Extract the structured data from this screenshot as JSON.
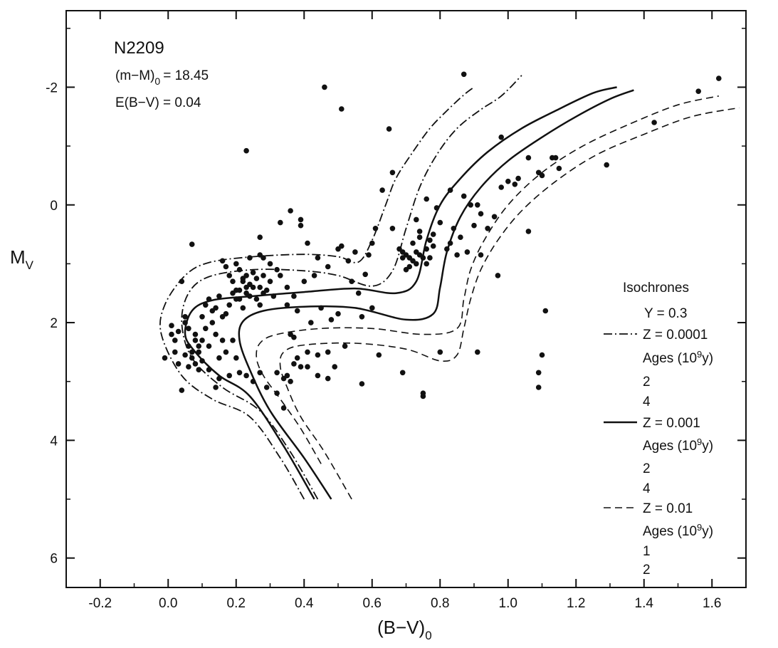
{
  "chart_data": {
    "type": "scatter",
    "title": "N2209",
    "annotations": {
      "modulus": "(m−M)0 = 18.45",
      "modulus_main": "(m−M)",
      "modulus_sub": "0",
      "modulus_value": "= 18.45",
      "reddening": "E(B−V) = 0.04"
    },
    "xlabel": "(B−V)0",
    "xlabel_main": "(B−V)",
    "xlabel_sub": "0",
    "ylabel": "MV",
    "ylabel_main": "M",
    "ylabel_sub": "V",
    "xlim": [
      -0.3,
      1.7
    ],
    "ylim": [
      6.5,
      -3.3
    ],
    "y_inverted": true,
    "grid": false,
    "legend_position": "right",
    "x_ticks": [
      {
        "value": -0.2,
        "label": "-0.2"
      },
      {
        "value": 0.0,
        "label": "0.0"
      },
      {
        "value": 0.2,
        "label": "0.2"
      },
      {
        "value": 0.4,
        "label": "0.4"
      },
      {
        "value": 0.6,
        "label": "0.6"
      },
      {
        "value": 0.8,
        "label": "0.8"
      },
      {
        "value": 1.0,
        "label": "1.0"
      },
      {
        "value": 1.2,
        "label": "1.2"
      },
      {
        "value": 1.4,
        "label": "1.4"
      },
      {
        "value": 1.6,
        "label": "1.6"
      }
    ],
    "y_ticks": [
      {
        "value": -2,
        "label": "-2"
      },
      {
        "value": 0,
        "label": "0"
      },
      {
        "value": 2,
        "label": "2"
      },
      {
        "value": 4,
        "label": "4"
      },
      {
        "value": 6,
        "label": "6"
      }
    ],
    "legend": {
      "title": "Isochrones",
      "helium": "Y = 0.3",
      "groups": [
        {
          "style": "dashdot",
          "label": "Z = 0.0001",
          "ages_main": "Ages (10",
          "ages_exp": "9",
          "ages_unit": "y)",
          "ages": [
            "2",
            "4"
          ]
        },
        {
          "style": "solid",
          "label": "Z = 0.001",
          "ages_main": "Ages (10",
          "ages_exp": "9",
          "ages_unit": "y)",
          "ages": [
            "2",
            "4"
          ]
        },
        {
          "style": "dashed",
          "label": "Z = 0.01",
          "ages_main": "Ages (10",
          "ages_exp": "9",
          "ages_unit": "y)",
          "ages": [
            "1",
            "2"
          ]
        }
      ]
    },
    "isochrones": [
      {
        "style": "dashdot",
        "points": [
          [
            0.4,
            5.0
          ],
          [
            0.33,
            4.3
          ],
          [
            0.24,
            3.6
          ],
          [
            0.13,
            3.3
          ],
          [
            0.04,
            2.9
          ],
          [
            -0.02,
            2.2
          ],
          [
            -0.01,
            1.7
          ],
          [
            0.05,
            1.2
          ],
          [
            0.12,
            0.98
          ],
          [
            0.25,
            0.88
          ],
          [
            0.4,
            0.84
          ],
          [
            0.5,
            0.88
          ],
          [
            0.56,
            0.97
          ],
          [
            0.6,
            0.6
          ],
          [
            0.64,
            0.0
          ],
          [
            0.67,
            -0.45
          ],
          [
            0.72,
            -0.9
          ],
          [
            0.77,
            -1.3
          ],
          [
            0.82,
            -1.6
          ],
          [
            0.87,
            -1.87
          ],
          [
            0.9,
            -2.0
          ]
        ]
      },
      {
        "style": "dashdot",
        "points": [
          [
            0.44,
            5.0
          ],
          [
            0.36,
            4.2
          ],
          [
            0.27,
            3.5
          ],
          [
            0.16,
            3.1
          ],
          [
            0.07,
            2.6
          ],
          [
            0.04,
            2.0
          ],
          [
            0.06,
            1.5
          ],
          [
            0.12,
            1.22
          ],
          [
            0.25,
            1.1
          ],
          [
            0.4,
            1.12
          ],
          [
            0.5,
            1.2
          ],
          [
            0.6,
            1.38
          ],
          [
            0.66,
            1.12
          ],
          [
            0.7,
            0.4
          ],
          [
            0.74,
            -0.3
          ],
          [
            0.79,
            -0.85
          ],
          [
            0.85,
            -1.3
          ],
          [
            0.92,
            -1.62
          ],
          [
            0.98,
            -1.85
          ],
          [
            1.04,
            -2.2
          ]
        ]
      },
      {
        "style": "solid",
        "points": [
          [
            0.43,
            5.0
          ],
          [
            0.34,
            4.1
          ],
          [
            0.24,
            3.25
          ],
          [
            0.15,
            2.9
          ],
          [
            0.08,
            2.5
          ],
          [
            0.05,
            2.2
          ],
          [
            0.07,
            1.8
          ],
          [
            0.13,
            1.62
          ],
          [
            0.25,
            1.55
          ],
          [
            0.4,
            1.48
          ],
          [
            0.55,
            1.42
          ],
          [
            0.67,
            1.5
          ],
          [
            0.73,
            1.3
          ],
          [
            0.76,
            0.6
          ],
          [
            0.8,
            0.0
          ],
          [
            0.86,
            -0.45
          ],
          [
            0.94,
            -0.9
          ],
          [
            1.04,
            -1.3
          ],
          [
            1.14,
            -1.6
          ],
          [
            1.25,
            -1.9
          ],
          [
            1.32,
            -2.0
          ]
        ]
      },
      {
        "style": "solid",
        "points": [
          [
            0.48,
            5.0
          ],
          [
            0.4,
            4.3
          ],
          [
            0.3,
            3.5
          ],
          [
            0.24,
            2.8
          ],
          [
            0.21,
            2.3
          ],
          [
            0.22,
            1.98
          ],
          [
            0.28,
            1.8
          ],
          [
            0.4,
            1.73
          ],
          [
            0.55,
            1.75
          ],
          [
            0.7,
            1.95
          ],
          [
            0.78,
            1.85
          ],
          [
            0.8,
            1.4
          ],
          [
            0.82,
            0.8
          ],
          [
            0.86,
            0.2
          ],
          [
            0.92,
            -0.3
          ],
          [
            1.0,
            -0.75
          ],
          [
            1.1,
            -1.15
          ],
          [
            1.2,
            -1.5
          ],
          [
            1.3,
            -1.8
          ],
          [
            1.37,
            -1.95
          ]
        ]
      },
      {
        "style": "dashed",
        "points": [
          [
            0.45,
            4.4
          ],
          [
            0.39,
            3.8
          ],
          [
            0.33,
            3.3
          ],
          [
            0.28,
            2.9
          ],
          [
            0.26,
            2.6
          ],
          [
            0.27,
            2.35
          ],
          [
            0.32,
            2.2
          ],
          [
            0.45,
            2.1
          ],
          [
            0.6,
            2.1
          ],
          [
            0.75,
            2.2
          ],
          [
            0.85,
            2.1
          ],
          [
            0.87,
            1.6
          ],
          [
            0.89,
            1.1
          ],
          [
            0.93,
            0.6
          ],
          [
            1.0,
            0.0
          ],
          [
            1.1,
            -0.55
          ],
          [
            1.22,
            -1.0
          ],
          [
            1.36,
            -1.38
          ],
          [
            1.5,
            -1.7
          ],
          [
            1.62,
            -1.85
          ]
        ]
      },
      {
        "style": "dashed",
        "points": [
          [
            0.54,
            5.0
          ],
          [
            0.46,
            4.2
          ],
          [
            0.39,
            3.6
          ],
          [
            0.35,
            3.1
          ],
          [
            0.33,
            2.75
          ],
          [
            0.34,
            2.5
          ],
          [
            0.4,
            2.38
          ],
          [
            0.55,
            2.35
          ],
          [
            0.7,
            2.45
          ],
          [
            0.8,
            2.65
          ],
          [
            0.85,
            2.55
          ],
          [
            0.87,
            2.1
          ],
          [
            0.89,
            1.6
          ],
          [
            0.92,
            1.1
          ],
          [
            0.97,
            0.6
          ],
          [
            1.04,
            0.1
          ],
          [
            1.14,
            -0.4
          ],
          [
            1.26,
            -0.85
          ],
          [
            1.4,
            -1.2
          ],
          [
            1.54,
            -1.5
          ],
          [
            1.68,
            -1.65
          ]
        ]
      }
    ],
    "stars": [
      [
        -0.01,
        2.6
      ],
      [
        0.01,
        2.05
      ],
      [
        0.03,
        2.7
      ],
      [
        0.04,
        3.15
      ],
      [
        0.02,
        2.5
      ],
      [
        0.07,
        0.67
      ],
      [
        0.04,
        1.3
      ],
      [
        0.01,
        2.2
      ],
      [
        0.02,
        2.3
      ],
      [
        0.03,
        2.15
      ],
      [
        0.05,
        2.0
      ],
      [
        0.06,
        2.4
      ],
      [
        0.07,
        2.6
      ],
      [
        0.08,
        2.2
      ],
      [
        0.09,
        2.5
      ],
      [
        0.1,
        2.3
      ],
      [
        0.11,
        2.1
      ],
      [
        0.12,
        2.4
      ],
      [
        0.13,
        2.0
      ],
      [
        0.14,
        2.2
      ],
      [
        0.15,
        2.6
      ],
      [
        0.16,
        2.3
      ],
      [
        0.05,
        1.9
      ],
      [
        0.06,
        2.1
      ],
      [
        0.07,
        2.5
      ],
      [
        0.08,
        2.7
      ],
      [
        0.09,
        2.8
      ],
      [
        0.1,
        1.9
      ],
      [
        0.11,
        1.7
      ],
      [
        0.12,
        1.6
      ],
      [
        0.13,
        1.8
      ],
      [
        0.14,
        1.75
      ],
      [
        0.15,
        1.55
      ],
      [
        0.16,
        1.9
      ],
      [
        0.17,
        1.85
      ],
      [
        0.18,
        1.7
      ],
      [
        0.19,
        1.5
      ],
      [
        0.2,
        1.6
      ],
      [
        0.21,
        1.45
      ],
      [
        0.22,
        1.3
      ],
      [
        0.23,
        1.2
      ],
      [
        0.24,
        1.35
      ],
      [
        0.25,
        1.15
      ],
      [
        0.26,
        1.25
      ],
      [
        0.27,
        1.4
      ],
      [
        0.28,
        1.5
      ],
      [
        0.2,
        1.0
      ],
      [
        0.21,
        1.1
      ],
      [
        0.22,
        1.25
      ],
      [
        0.23,
        1.4
      ],
      [
        0.18,
        1.2
      ],
      [
        0.17,
        1.05
      ],
      [
        0.16,
        0.95
      ],
      [
        0.19,
        1.3
      ],
      [
        0.2,
        1.45
      ],
      [
        0.21,
        1.6
      ],
      [
        0.22,
        1.75
      ],
      [
        0.23,
        1.5
      ],
      [
        0.24,
        1.55
      ],
      [
        0.25,
        1.4
      ],
      [
        0.26,
        1.6
      ],
      [
        0.27,
        1.7
      ],
      [
        0.28,
        1.2
      ],
      [
        0.29,
        1.45
      ],
      [
        0.3,
        1.3
      ],
      [
        0.31,
        1.55
      ],
      [
        0.33,
        1.2
      ],
      [
        0.35,
        1.4
      ],
      [
        0.27,
        0.85
      ],
      [
        0.27,
        0.55
      ],
      [
        0.28,
        0.9
      ],
      [
        0.24,
        0.9
      ],
      [
        0.3,
        1.0
      ],
      [
        0.32,
        1.1
      ],
      [
        0.36,
        0.1
      ],
      [
        0.39,
        0.25
      ],
      [
        0.39,
        0.35
      ],
      [
        0.33,
        0.3
      ],
      [
        0.41,
        0.65
      ],
      [
        0.44,
        0.9
      ],
      [
        0.5,
        0.75
      ],
      [
        0.51,
        0.7
      ],
      [
        0.53,
        0.95
      ],
      [
        0.55,
        0.8
      ],
      [
        0.47,
        1.05
      ],
      [
        0.43,
        1.2
      ],
      [
        0.4,
        1.3
      ],
      [
        0.37,
        1.55
      ],
      [
        0.35,
        1.7
      ],
      [
        0.38,
        1.8
      ],
      [
        0.42,
        2.0
      ],
      [
        0.45,
        1.75
      ],
      [
        0.5,
        1.85
      ],
      [
        0.48,
        1.95
      ],
      [
        0.36,
        2.2
      ],
      [
        0.37,
        2.25
      ],
      [
        0.38,
        2.6
      ],
      [
        0.32,
        2.85
      ],
      [
        0.34,
        2.95
      ],
      [
        0.35,
        2.9
      ],
      [
        0.37,
        2.7
      ],
      [
        0.39,
        2.75
      ],
      [
        0.41,
        2.75
      ],
      [
        0.44,
        2.55
      ],
      [
        0.47,
        2.5
      ],
      [
        0.49,
        2.75
      ],
      [
        0.41,
        2.5
      ],
      [
        0.52,
        2.4
      ],
      [
        0.44,
        2.9
      ],
      [
        0.47,
        2.95
      ],
      [
        0.36,
        3.0
      ],
      [
        0.34,
        3.45
      ],
      [
        0.32,
        3.2
      ],
      [
        0.29,
        3.1
      ],
      [
        0.27,
        2.85
      ],
      [
        0.25,
        3.0
      ],
      [
        0.23,
        2.9
      ],
      [
        0.21,
        2.85
      ],
      [
        0.2,
        2.6
      ],
      [
        0.18,
        2.9
      ],
      [
        0.17,
        2.5
      ],
      [
        0.19,
        2.3
      ],
      [
        0.14,
        3.1
      ],
      [
        0.15,
        2.95
      ],
      [
        0.12,
        2.8
      ],
      [
        0.1,
        2.65
      ],
      [
        0.09,
        2.4
      ],
      [
        0.08,
        2.3
      ],
      [
        0.06,
        2.75
      ],
      [
        0.05,
        2.55
      ],
      [
        0.46,
        -2.0
      ],
      [
        0.51,
        -1.63
      ],
      [
        0.23,
        -0.92
      ],
      [
        0.57,
        3.04
      ],
      [
        0.62,
        2.55
      ],
      [
        0.69,
        2.85
      ],
      [
        0.75,
        3.2
      ],
      [
        0.75,
        3.25
      ],
      [
        0.8,
        2.5
      ],
      [
        0.91,
        2.5
      ],
      [
        0.65,
        -1.29
      ],
      [
        0.66,
        -0.55
      ],
      [
        0.63,
        -0.25
      ],
      [
        0.66,
        0.4
      ],
      [
        0.68,
        0.75
      ],
      [
        0.69,
        0.8
      ],
      [
        0.7,
        0.85
      ],
      [
        0.71,
        0.9
      ],
      [
        0.72,
        0.95
      ],
      [
        0.73,
        1.0
      ],
      [
        0.74,
        0.85
      ],
      [
        0.75,
        0.9
      ],
      [
        0.76,
        1.0
      ],
      [
        0.77,
        0.9
      ],
      [
        0.78,
        0.7
      ],
      [
        0.73,
        0.8
      ],
      [
        0.72,
        0.65
      ],
      [
        0.74,
        0.55
      ],
      [
        0.76,
        0.75
      ],
      [
        0.71,
        1.05
      ],
      [
        0.7,
        1.1
      ],
      [
        0.69,
        0.9
      ],
      [
        0.77,
        0.6
      ],
      [
        0.73,
        0.25
      ],
      [
        0.74,
        0.45
      ],
      [
        0.78,
        0.5
      ],
      [
        0.8,
        0.3
      ],
      [
        0.76,
        -0.1
      ],
      [
        0.79,
        0.05
      ],
      [
        0.83,
        -0.25
      ],
      [
        0.87,
        -0.15
      ],
      [
        0.89,
        0.0
      ],
      [
        0.91,
        0.0
      ],
      [
        0.92,
        0.15
      ],
      [
        0.9,
        0.35
      ],
      [
        0.86,
        0.55
      ],
      [
        0.84,
        0.4
      ],
      [
        0.83,
        0.65
      ],
      [
        0.82,
        0.75
      ],
      [
        0.85,
        0.85
      ],
      [
        0.88,
        0.8
      ],
      [
        0.92,
        0.85
      ],
      [
        0.94,
        0.4
      ],
      [
        0.96,
        0.2
      ],
      [
        0.98,
        -0.3
      ],
      [
        1.0,
        -0.4
      ],
      [
        1.02,
        -0.35
      ],
      [
        1.03,
        -0.45
      ],
      [
        1.06,
        -0.8
      ],
      [
        1.09,
        -0.55
      ],
      [
        1.1,
        -0.5
      ],
      [
        1.13,
        -0.8
      ],
      [
        0.87,
        -2.22
      ],
      [
        0.98,
        -1.15
      ],
      [
        1.14,
        -0.8
      ],
      [
        1.15,
        -0.62
      ],
      [
        1.29,
        -0.68
      ],
      [
        1.43,
        -1.4
      ],
      [
        1.56,
        -1.93
      ],
      [
        1.62,
        -2.15
      ],
      [
        0.97,
        1.2
      ],
      [
        1.06,
        0.45
      ],
      [
        1.11,
        1.8
      ],
      [
        1.1,
        2.55
      ],
      [
        1.09,
        2.85
      ],
      [
        1.09,
        3.1
      ],
      [
        0.58,
        1.18
      ],
      [
        0.6,
        0.65
      ],
      [
        0.61,
        0.4
      ],
      [
        0.59,
        0.85
      ],
      [
        0.56,
        1.5
      ],
      [
        0.57,
        1.9
      ],
      [
        0.6,
        1.75
      ],
      [
        0.54,
        1.3
      ]
    ]
  }
}
